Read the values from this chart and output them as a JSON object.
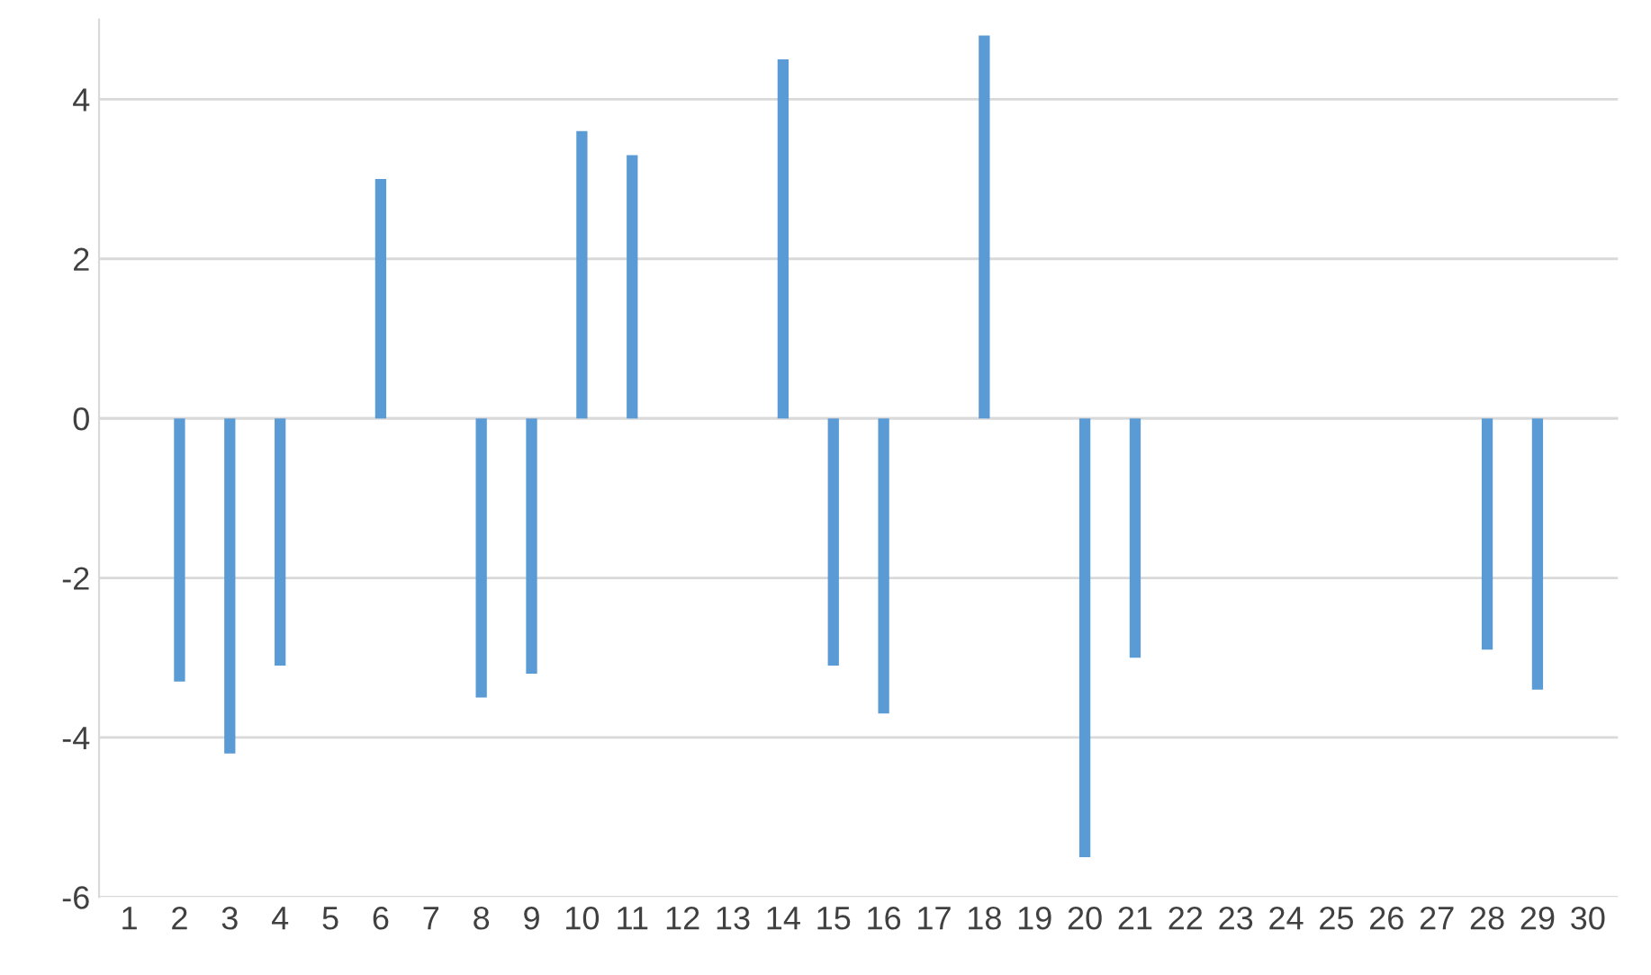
{
  "chart_data": {
    "type": "bar",
    "categories": [
      "1",
      "2",
      "3",
      "4",
      "5",
      "6",
      "7",
      "8",
      "9",
      "10",
      "11",
      "12",
      "13",
      "14",
      "15",
      "16",
      "17",
      "18",
      "19",
      "20",
      "21",
      "22",
      "23",
      "24",
      "25",
      "26",
      "27",
      "28",
      "29",
      "30"
    ],
    "values": [
      0,
      -3.3,
      -4.2,
      -3.1,
      0,
      3.0,
      0,
      -3.5,
      -3.2,
      3.6,
      3.3,
      0,
      0,
      4.5,
      -3.1,
      -3.7,
      0,
      4.8,
      0,
      -5.5,
      -3.0,
      0,
      0,
      0,
      0,
      0,
      0,
      -2.9,
      -3.4,
      0
    ],
    "color": "#5b9bd5",
    "ylim": [
      -6,
      5
    ],
    "yticks": [
      {
        "value": -6,
        "label": "-6"
      },
      {
        "value": -4,
        "label": "-4"
      },
      {
        "value": -2,
        "label": "-2"
      },
      0,
      2,
      4
    ],
    "grid": "y"
  }
}
